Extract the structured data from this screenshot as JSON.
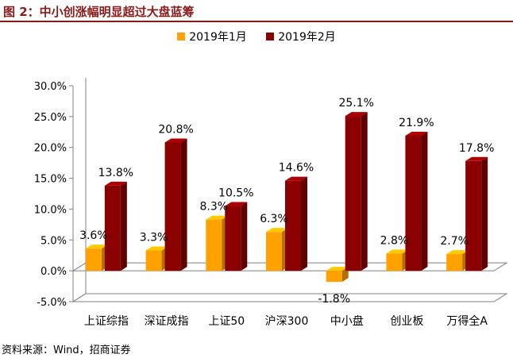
{
  "title": "图 2：中小创涨幅明显超过大盘蓝筹",
  "source": "资料来源：Wind，招商证券",
  "colors": {
    "series1": "#ffa200",
    "series2": "#8b0000",
    "title": "#8b1a1a"
  },
  "chart_data": {
    "type": "bar",
    "categories": [
      "上证综指",
      "深证成指",
      "上证50",
      "沪深300",
      "中小盘",
      "创业板",
      "万得全A"
    ],
    "series": [
      {
        "name": "2019年1月",
        "values": [
          3.6,
          3.3,
          8.3,
          6.3,
          -1.8,
          2.8,
          2.7
        ],
        "labels": [
          "3.6%",
          "3.3%",
          "8.3%",
          "6.3%",
          "-1.8%",
          "2.8%",
          "2.7%"
        ]
      },
      {
        "name": "2019年2月",
        "values": [
          13.8,
          20.8,
          10.5,
          14.6,
          25.1,
          21.9,
          17.8
        ],
        "labels": [
          "13.8%",
          "20.8%",
          "10.5%",
          "14.6%",
          "25.1%",
          "21.9%",
          "17.8%"
        ]
      }
    ],
    "yticks": [
      "30.0%",
      "25.0%",
      "20.0%",
      "15.0%",
      "10.0%",
      "5.0%",
      "0.0%",
      "-5.0%"
    ],
    "ylim": [
      -5,
      30
    ],
    "legend_position": "top"
  }
}
